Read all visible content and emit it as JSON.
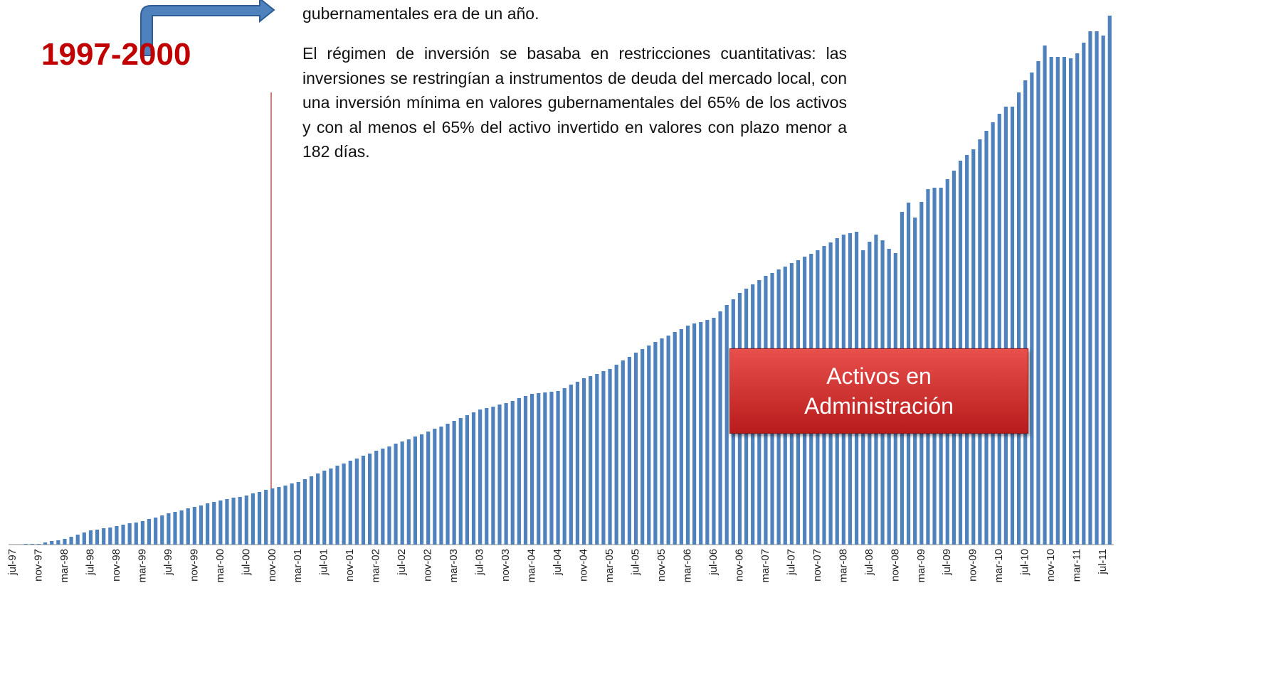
{
  "chart_data": {
    "type": "bar",
    "period_label": "1997-2000",
    "paragraphs": [
      "gubernamentales era de un año.",
      "El régimen de inversión se basaba en restricciones cuantitativas: las inversiones se restringían a instrumentos de deuda del mercado local, con una inversión mínima en valores gubernamentales del 65% de los activos y con al menos el 65% del activo invertido en valores con plazo menor a 182 días."
    ],
    "box_label": "Activos en Administración",
    "color": "#4f81bd",
    "ylim": [
      0,
      760
    ],
    "categories": [
      "jul-97",
      null,
      null,
      null,
      "nov-97",
      null,
      null,
      null,
      "mar-98",
      null,
      null,
      null,
      "jul-98",
      null,
      null,
      null,
      "nov-98",
      null,
      null,
      null,
      "mar-99",
      null,
      null,
      null,
      "jul-99",
      null,
      null,
      null,
      "nov-99",
      null,
      null,
      null,
      "mar-00",
      null,
      null,
      null,
      "jul-00",
      null,
      null,
      null,
      "nov-00",
      null,
      null,
      null,
      "mar-01",
      null,
      null,
      null,
      "jul-01",
      null,
      null,
      null,
      "nov-01",
      null,
      null,
      null,
      "mar-02",
      null,
      null,
      null,
      "jul-02",
      null,
      null,
      null,
      "nov-02",
      null,
      null,
      null,
      "mar-03",
      null,
      null,
      null,
      "jul-03",
      null,
      null,
      null,
      "nov-03",
      null,
      null,
      null,
      "mar-04",
      null,
      null,
      null,
      "jul-04",
      null,
      null,
      null,
      "nov-04",
      null,
      null,
      null,
      "mar-05",
      null,
      null,
      null,
      "jul-05",
      null,
      null,
      null,
      "nov-05",
      null,
      null,
      null,
      "mar-06",
      null,
      null,
      null,
      "jul-06",
      null,
      null,
      null,
      "nov-06",
      null,
      null,
      null,
      "mar-07",
      null,
      null,
      null,
      "jul-07",
      null,
      null,
      null,
      "nov-07",
      null,
      null,
      null,
      "mar-08",
      null,
      null,
      null,
      "jul-08",
      null,
      null,
      null,
      "nov-08",
      null,
      null,
      null,
      "mar-09",
      null,
      null,
      null,
      "jul-09",
      null,
      null,
      null,
      "nov-09",
      null,
      null,
      null,
      "mar-10",
      null,
      null,
      null,
      "jul-10",
      null,
      null,
      null,
      "nov-10",
      null,
      null,
      null,
      "mar-11",
      null,
      null,
      null,
      "jul-11",
      null
    ],
    "values": [
      0,
      0,
      1,
      1,
      1,
      3,
      5,
      6,
      8,
      11,
      14,
      17,
      20,
      21,
      23,
      24,
      26,
      28,
      30,
      31,
      33,
      36,
      38,
      41,
      44,
      46,
      48,
      51,
      53,
      55,
      58,
      60,
      62,
      64,
      66,
      67,
      69,
      72,
      74,
      77,
      79,
      81,
      83,
      86,
      88,
      92,
      96,
      100,
      104,
      107,
      111,
      114,
      118,
      121,
      125,
      128,
      132,
      135,
      138,
      142,
      145,
      148,
      152,
      155,
      159,
      163,
      166,
      170,
      174,
      178,
      182,
      186,
      190,
      192,
      194,
      197,
      199,
      202,
      206,
      209,
      212,
      213,
      214,
      215,
      216,
      220,
      225,
      229,
      234,
      237,
      240,
      244,
      247,
      253,
      259,
      264,
      270,
      275,
      280,
      285,
      290,
      294,
      299,
      303,
      308,
      311,
      313,
      316,
      319,
      328,
      337,
      345,
      354,
      360,
      366,
      372,
      378,
      382,
      387,
      391,
      396,
      400,
      405,
      409,
      414,
      420,
      425,
      431,
      436,
      438,
      440,
      414,
      426,
      436,
      428,
      416,
      410,
      468,
      481,
      460,
      482,
      500,
      502,
      502,
      514,
      526,
      540,
      548,
      556,
      570,
      582,
      594,
      606,
      616,
      616,
      636,
      653,
      664,
      680,
      702,
      686,
      686,
      686,
      684,
      691,
      706,
      722,
      722,
      716,
      744
    ]
  }
}
